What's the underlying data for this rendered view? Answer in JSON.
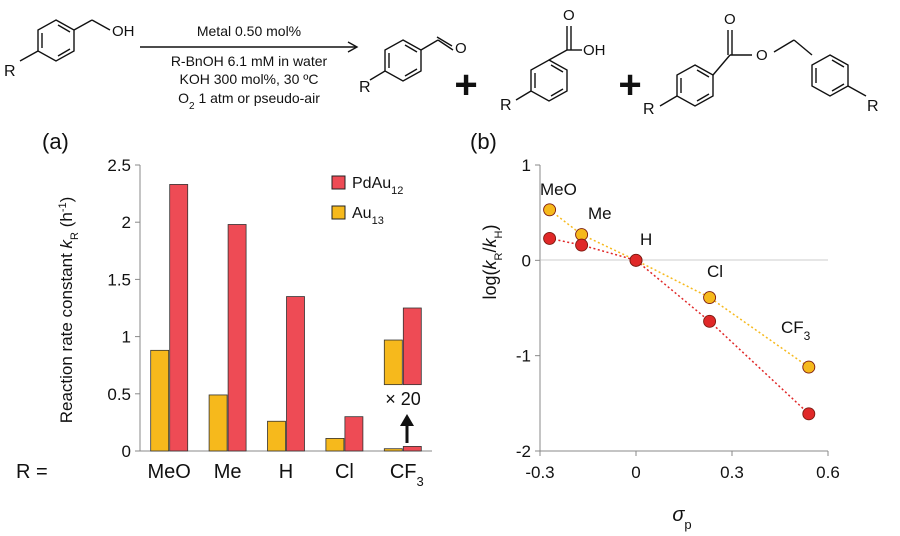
{
  "scheme": {
    "reactant_oh": "OH",
    "r_label": "R",
    "product_o": "O",
    "cond_line1": "Metal 0.50 mol%",
    "cond_line2": "R-BnOH 6.1 mM in water",
    "cond_line3": "KOH 300 mol%, 30 ºC",
    "cond_line4_o": "O",
    "cond_line4_sub": "2",
    "cond_line4_rest": " 1 atm or pseudo-air",
    "plus": "+"
  },
  "panel_a": {
    "label": "(a)",
    "ylabel_main": "Reaction rate constant ",
    "ylabel_k": "k",
    "ylabel_sub": "R",
    "ylabel_unit": " (h",
    "ylabel_sup": "-1",
    "ylabel_close": ")",
    "r_prefix": "R =",
    "cf3_main": "CF",
    "cf3_sub": "3",
    "x20_label": "× 20",
    "legend": [
      {
        "name_main": "PdAu",
        "name_sub": "12",
        "color": "#ee4b55"
      },
      {
        "name_main": "Au",
        "name_sub": "13",
        "color": "#f6b91c"
      }
    ]
  },
  "panel_b": {
    "label": "(b)",
    "ylabel_pre": "log(",
    "ylabel_k1": "k",
    "ylabel_s1": "R",
    "ylabel_mid": "/",
    "ylabel_k2": "k",
    "ylabel_s2": "H",
    "ylabel_post": ")",
    "xlabel_main": "σ",
    "xlabel_sub": "p",
    "point_labels": [
      "MeO",
      "Me",
      "H",
      "Cl",
      "CF"
    ],
    "point_label_cf3_sub": "3"
  },
  "chart_data": [
    {
      "type": "bar",
      "categories": [
        "MeO",
        "Me",
        "H",
        "Cl",
        "CF3"
      ],
      "series": [
        {
          "name": "Au13",
          "values": [
            0.88,
            0.49,
            0.26,
            0.11,
            0.02
          ],
          "color": "#f6b91c"
        },
        {
          "name": "PdAu12",
          "values": [
            2.33,
            1.98,
            1.35,
            0.3,
            0.04
          ],
          "color": "#ee4b55"
        }
      ],
      "inset_x20": {
        "Au13": 0.97,
        "PdAu12": 1.25,
        "base": 0.58
      },
      "ylim": [
        0,
        2.5
      ],
      "yticks": [
        "0",
        "0.5",
        "1",
        "1.5",
        "2",
        "2.5"
      ],
      "grid": false,
      "legend_position": "top-right"
    },
    {
      "type": "scatter",
      "xlim": [
        -0.3,
        0.6
      ],
      "ylim": [
        -2,
        1
      ],
      "xticks": [
        "-0.3",
        "0",
        "0.3",
        "0.6"
      ],
      "yticks": [
        "-2",
        "-1",
        "0",
        "1"
      ],
      "series": [
        {
          "name": "Au13",
          "color": "#f6b91c",
          "points": [
            [
              -0.27,
              0.53
            ],
            [
              -0.17,
              0.27
            ],
            [
              0.0,
              0.0
            ],
            [
              0.23,
              -0.39
            ],
            [
              0.54,
              -1.12
            ]
          ]
        },
        {
          "name": "PdAu12",
          "color": "#e02828",
          "points": [
            [
              -0.27,
              0.23
            ],
            [
              -0.17,
              0.16
            ],
            [
              0.0,
              0.0
            ],
            [
              0.23,
              -0.64
            ],
            [
              0.54,
              -1.61
            ]
          ]
        }
      ],
      "grid": false
    }
  ]
}
